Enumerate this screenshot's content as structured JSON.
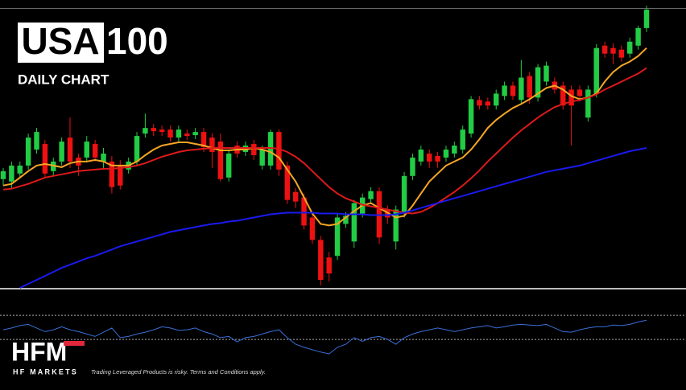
{
  "header": {
    "title_boxed": "USA",
    "title_rest": "100",
    "subtitle": "DAILY CHART"
  },
  "footer": {
    "logo": "HFM",
    "brand": "HF MARKETS",
    "disclaimer": "Trading Leveraged Products is risky. Terms and Conditions apply."
  },
  "chart_data": [
    {
      "type": "candlestick",
      "ylim": [
        0,
        348
      ],
      "up_color": "#22cc44",
      "down_color": "#ee1111",
      "open": [
        136,
        133,
        143,
        153,
        173,
        180,
        146,
        158,
        188,
        163,
        163,
        180,
        158,
        158,
        153,
        148,
        158,
        193,
        200,
        198,
        198,
        188,
        193,
        191,
        195,
        188,
        183,
        138,
        178,
        170,
        180,
        153,
        153,
        195,
        153,
        120,
        113,
        88,
        60,
        38,
        40,
        80,
        58,
        93,
        111,
        121,
        98,
        58,
        93,
        140,
        158,
        168,
        165,
        163,
        168,
        173,
        193,
        235,
        233,
        228,
        240,
        253,
        235,
        265,
        238,
        258,
        258,
        253,
        248,
        248,
        213,
        243,
        303,
        300,
        298,
        293,
        303,
        325
      ],
      "high": [
        150,
        158,
        158,
        193,
        200,
        185,
        163,
        188,
        213,
        168,
        190,
        185,
        175,
        165,
        160,
        163,
        195,
        218,
        205,
        203,
        203,
        203,
        198,
        200,
        200,
        193,
        193,
        173,
        183,
        183,
        185,
        178,
        198,
        198,
        158,
        125,
        118,
        93,
        65,
        45,
        93,
        95,
        110,
        118,
        126,
        126,
        103,
        103,
        145,
        168,
        178,
        173,
        170,
        178,
        183,
        203,
        240,
        240,
        238,
        248,
        258,
        258,
        285,
        270,
        280,
        283,
        263,
        258,
        253,
        253,
        253,
        305,
        308,
        306,
        303,
        313,
        328,
        353
      ],
      "low": [
        128,
        123,
        138,
        148,
        168,
        138,
        140,
        153,
        150,
        140,
        158,
        158,
        150,
        118,
        123,
        143,
        153,
        188,
        190,
        190,
        183,
        183,
        185,
        186,
        170,
        150,
        133,
        133,
        163,
        165,
        160,
        148,
        148,
        140,
        105,
        100,
        73,
        55,
        3,
        8,
        35,
        75,
        50,
        88,
        106,
        55,
        80,
        48,
        88,
        135,
        153,
        150,
        150,
        158,
        163,
        168,
        188,
        223,
        223,
        223,
        235,
        235,
        230,
        230,
        233,
        253,
        243,
        223,
        178,
        233,
        208,
        238,
        288,
        280,
        283,
        288,
        298,
        320
      ],
      "close": [
        146,
        153,
        153,
        188,
        195,
        143,
        158,
        183,
        158,
        153,
        183,
        163,
        168,
        126,
        128,
        158,
        190,
        200,
        196,
        195,
        188,
        198,
        190,
        195,
        176,
        170,
        136,
        168,
        168,
        178,
        166,
        173,
        195,
        148,
        110,
        108,
        78,
        60,
        10,
        18,
        88,
        90,
        106,
        113,
        121,
        63,
        88,
        98,
        140,
        163,
        173,
        158,
        158,
        173,
        178,
        198,
        236,
        228,
        228,
        243,
        253,
        240,
        263,
        238,
        276,
        278,
        248,
        228,
        228,
        240,
        248,
        300,
        293,
        293,
        288,
        308,
        325,
        348
      ],
      "series": [
        {
          "color": "#f5a623",
          "values": [
            128,
            130,
            138,
            146,
            153,
            155,
            153,
            151,
            156,
            158,
            158,
            160,
            158,
            153,
            153,
            153,
            158,
            166,
            173,
            178,
            180,
            182,
            182,
            180,
            178,
            175,
            172,
            172,
            173,
            173,
            175,
            173,
            170,
            163,
            148,
            133,
            113,
            93,
            80,
            78,
            80,
            88,
            96,
            103,
            106,
            100,
            94,
            88,
            90,
            103,
            118,
            133,
            143,
            153,
            158,
            163,
            173,
            186,
            200,
            210,
            218,
            225,
            230,
            236,
            243,
            250,
            253,
            248,
            240,
            236,
            238,
            243,
            258,
            270,
            278,
            283,
            290,
            300
          ]
        },
        {
          "color": "#dd1a1a",
          "values": [
            123,
            124,
            127,
            130,
            134,
            138,
            140,
            142,
            144,
            146,
            147,
            148,
            149,
            149,
            150,
            151,
            153,
            156,
            160,
            164,
            167,
            170,
            172,
            173,
            174,
            175,
            175,
            175,
            175,
            175,
            175,
            175,
            175,
            174,
            170,
            164,
            156,
            146,
            136,
            126,
            118,
            112,
            108,
            104,
            102,
            100,
            98,
            96,
            94,
            93,
            95,
            100,
            106,
            113,
            120,
            128,
            137,
            147,
            158,
            168,
            178,
            188,
            197,
            205,
            213,
            220,
            226,
            230,
            233,
            235,
            238,
            242,
            248,
            253,
            258,
            263,
            268,
            275
          ]
        },
        {
          "color": "#1a1aee",
          "values": [
            null,
            null,
            0,
            5,
            10,
            15,
            20,
            25,
            29,
            33,
            37,
            40,
            44,
            48,
            52,
            55,
            58,
            61,
            64,
            67,
            70,
            72,
            74,
            76,
            78,
            80,
            81,
            83,
            84,
            86,
            88,
            90,
            92,
            93,
            94,
            94,
            94,
            94,
            93,
            93,
            93,
            92,
            92,
            92,
            91,
            91,
            91,
            92,
            94,
            97,
            100,
            103,
            106,
            109,
            112,
            115,
            118,
            121,
            124,
            127,
            130,
            133,
            136,
            139,
            142,
            145,
            147,
            149,
            151,
            153,
            156,
            159,
            162,
            165,
            168,
            171,
            173,
            175
          ]
        }
      ]
    },
    {
      "type": "line",
      "ylim": [
        -54,
        113
      ],
      "levels": [
        30,
        70
      ],
      "color": "#3a6fd8",
      "values": [
        46,
        49,
        53,
        55,
        49,
        43,
        46,
        51,
        46,
        43,
        39,
        35,
        42,
        49,
        33,
        35,
        39,
        42,
        46,
        51,
        49,
        45,
        46,
        49,
        43,
        39,
        33,
        35,
        26,
        33,
        35,
        39,
        43,
        46,
        33,
        22,
        17,
        13,
        9,
        6,
        17,
        22,
        33,
        27,
        33,
        35,
        30,
        22,
        33,
        39,
        43,
        46,
        49,
        46,
        43,
        46,
        49,
        51,
        53,
        49,
        51,
        54,
        55,
        54,
        53,
        55,
        49,
        43,
        42,
        46,
        49,
        51,
        51,
        54,
        53,
        55,
        59,
        62
      ]
    }
  ]
}
